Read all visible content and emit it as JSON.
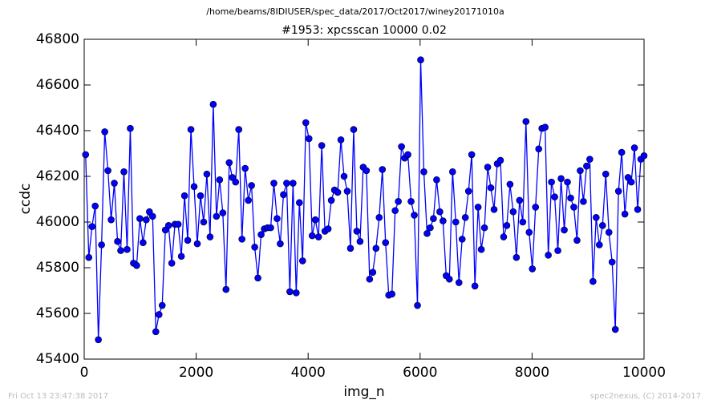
{
  "chart_data": {
    "type": "line",
    "suptitle": "/home/beams/8IDIUSER/spec_data/2017/Oct2017/winey20171010a",
    "title": "#1953: xpcsscan 10000 0.02",
    "xlabel": "img_n",
    "ylabel": "ccdc",
    "footer_left": "Fri Oct 13 23:47:38 2017",
    "footer_right": "spec2nexus, (C) 2014-2017",
    "xlim": [
      0,
      10000
    ],
    "xticks": [
      0,
      2000,
      4000,
      6000,
      8000,
      10000
    ],
    "ylim": [
      45400,
      46800
    ],
    "yticks": [
      45400,
      45600,
      45800,
      46000,
      46200,
      46400,
      46600,
      46800
    ],
    "grid": false,
    "series": [
      {
        "color": "#0000ff",
        "x": [
          25,
          82,
          139,
          196,
          253,
          310,
          367,
          424,
          481,
          538,
          595,
          652,
          709,
          766,
          823,
          880,
          937,
          994,
          1051,
          1108,
          1165,
          1222,
          1279,
          1336,
          1393,
          1450,
          1507,
          1564,
          1621,
          1678,
          1735,
          1792,
          1849,
          1906,
          1963,
          2020,
          2077,
          2134,
          2191,
          2248,
          2305,
          2362,
          2419,
          2476,
          2533,
          2590,
          2647,
          2704,
          2761,
          2818,
          2875,
          2932,
          2989,
          3046,
          3103,
          3160,
          3217,
          3274,
          3331,
          3388,
          3445,
          3502,
          3559,
          3616,
          3673,
          3730,
          3787,
          3844,
          3901,
          3958,
          4015,
          4072,
          4129,
          4186,
          4243,
          4300,
          4357,
          4414,
          4471,
          4528,
          4585,
          4642,
          4699,
          4756,
          4813,
          4870,
          4927,
          4984,
          5041,
          5098,
          5155,
          5212,
          5269,
          5326,
          5383,
          5440,
          5497,
          5554,
          5611,
          5668,
          5725,
          5782,
          5839,
          5896,
          5953,
          6010,
          6067,
          6124,
          6181,
          6238,
          6295,
          6352,
          6409,
          6466,
          6523,
          6580,
          6637,
          6694,
          6751,
          6808,
          6865,
          6922,
          6979,
          7036,
          7093,
          7150,
          7207,
          7264,
          7321,
          7378,
          7435,
          7492,
          7549,
          7606,
          7663,
          7720,
          7777,
          7834,
          7891,
          7948,
          8005,
          8062,
          8119,
          8176,
          8233,
          8290,
          8347,
          8404,
          8461,
          8518,
          8575,
          8632,
          8689,
          8746,
          8803,
          8860,
          8917,
          8974,
          9031,
          9088,
          9145,
          9202,
          9259,
          9316,
          9373,
          9430,
          9487,
          9544,
          9601,
          9658,
          9715,
          9772,
          9829,
          9886,
          9943,
          10000
        ],
        "values": [
          46295,
          45845,
          45980,
          46070,
          45485,
          45900,
          46395,
          46225,
          46010,
          46170,
          45915,
          45875,
          46220,
          45880,
          46410,
          45820,
          45810,
          46015,
          45910,
          46010,
          46045,
          46025,
          45520,
          45595,
          45635,
          45965,
          45985,
          45820,
          45990,
          45990,
          45850,
          46115,
          45920,
          46405,
          46155,
          45905,
          46115,
          46000,
          46210,
          45935,
          46515,
          46025,
          46185,
          46040,
          45705,
          46260,
          46195,
          46175,
          46405,
          45925,
          46235,
          46095,
          46160,
          45890,
          45755,
          45945,
          45970,
          45975,
          45975,
          46170,
          46015,
          45905,
          46120,
          46170,
          45695,
          46170,
          45690,
          46085,
          45830,
          46435,
          46365,
          45940,
          46010,
          45935,
          46335,
          45960,
          45970,
          46095,
          46140,
          46130,
          46360,
          46200,
          46135,
          45885,
          46405,
          45960,
          45915,
          46240,
          46225,
          45750,
          45780,
          45885,
          46020,
          46230,
          45910,
          45680,
          45685,
          46050,
          46090,
          46330,
          46280,
          46295,
          46090,
          46030,
          45635,
          46710,
          46220,
          45950,
          45975,
          46015,
          46185,
          46045,
          46005,
          45765,
          45750,
          46220,
          46000,
          45735,
          45925,
          46020,
          46135,
          46295,
          45720,
          46065,
          45880,
          45975,
          46240,
          46150,
          46055,
          46255,
          46270,
          45935,
          45985,
          46165,
          46045,
          45845,
          46095,
          46000,
          46440,
          45955,
          45795,
          46065,
          46320,
          46410,
          46415,
          45855,
          46175,
          46110,
          45875,
          46190,
          45965,
          46175,
          46105,
          46065,
          45920,
          46225,
          46090,
          46245,
          46275,
          45740,
          46020,
          45900,
          45985,
          46210,
          45955,
          45825,
          45530,
          46135,
          46305,
          46035,
          46195,
          46175,
          46325,
          46055,
          46275,
          46290
        ]
      }
    ]
  }
}
